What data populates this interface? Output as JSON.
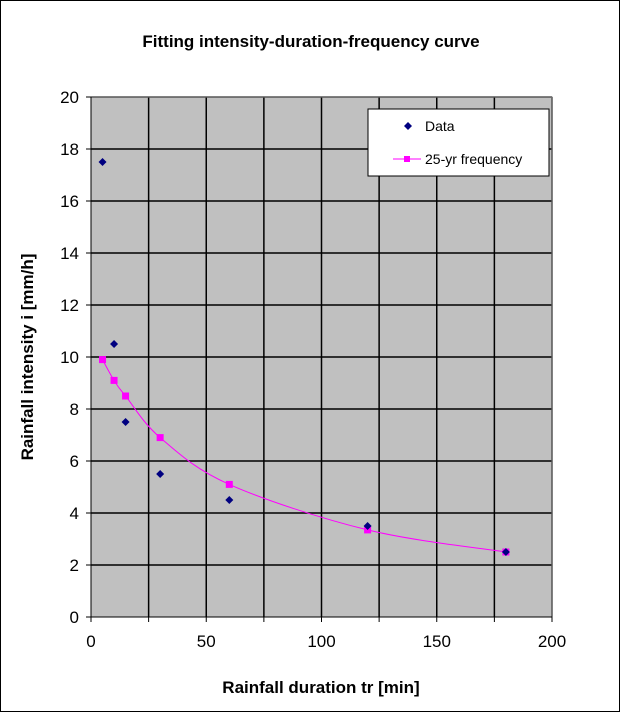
{
  "chart_data": {
    "type": "scatter",
    "title": "Fitting intensity-duration-frequency curve",
    "xlabel": "Rainfall duration  tr [min]",
    "ylabel": "Rainfall intensity   i   [mm/h]",
    "xlim": [
      0,
      200
    ],
    "ylim": [
      0,
      20
    ],
    "xticks": [
      0,
      50,
      100,
      150,
      200
    ],
    "yticks": [
      0,
      2,
      4,
      6,
      8,
      10,
      12,
      14,
      16,
      18,
      20
    ],
    "x_grid_step": 25,
    "grid": true,
    "legend": "top-right",
    "plot_background": "#C0C0C0",
    "series": [
      {
        "name": "Data",
        "type": "scatter",
        "marker": "diamond",
        "color": "#000080",
        "x": [
          5,
          10,
          15,
          30,
          60,
          120,
          180
        ],
        "y": [
          17.5,
          10.5,
          7.5,
          5.5,
          4.5,
          3.5,
          2.5
        ]
      },
      {
        "name": "25-yr frequency",
        "type": "line",
        "marker": "square",
        "color": "#FF00FF",
        "x": [
          5,
          10,
          15,
          30,
          60,
          120,
          180
        ],
        "y": [
          9.9,
          9.1,
          8.5,
          6.9,
          5.1,
          3.35,
          2.5
        ]
      }
    ]
  }
}
